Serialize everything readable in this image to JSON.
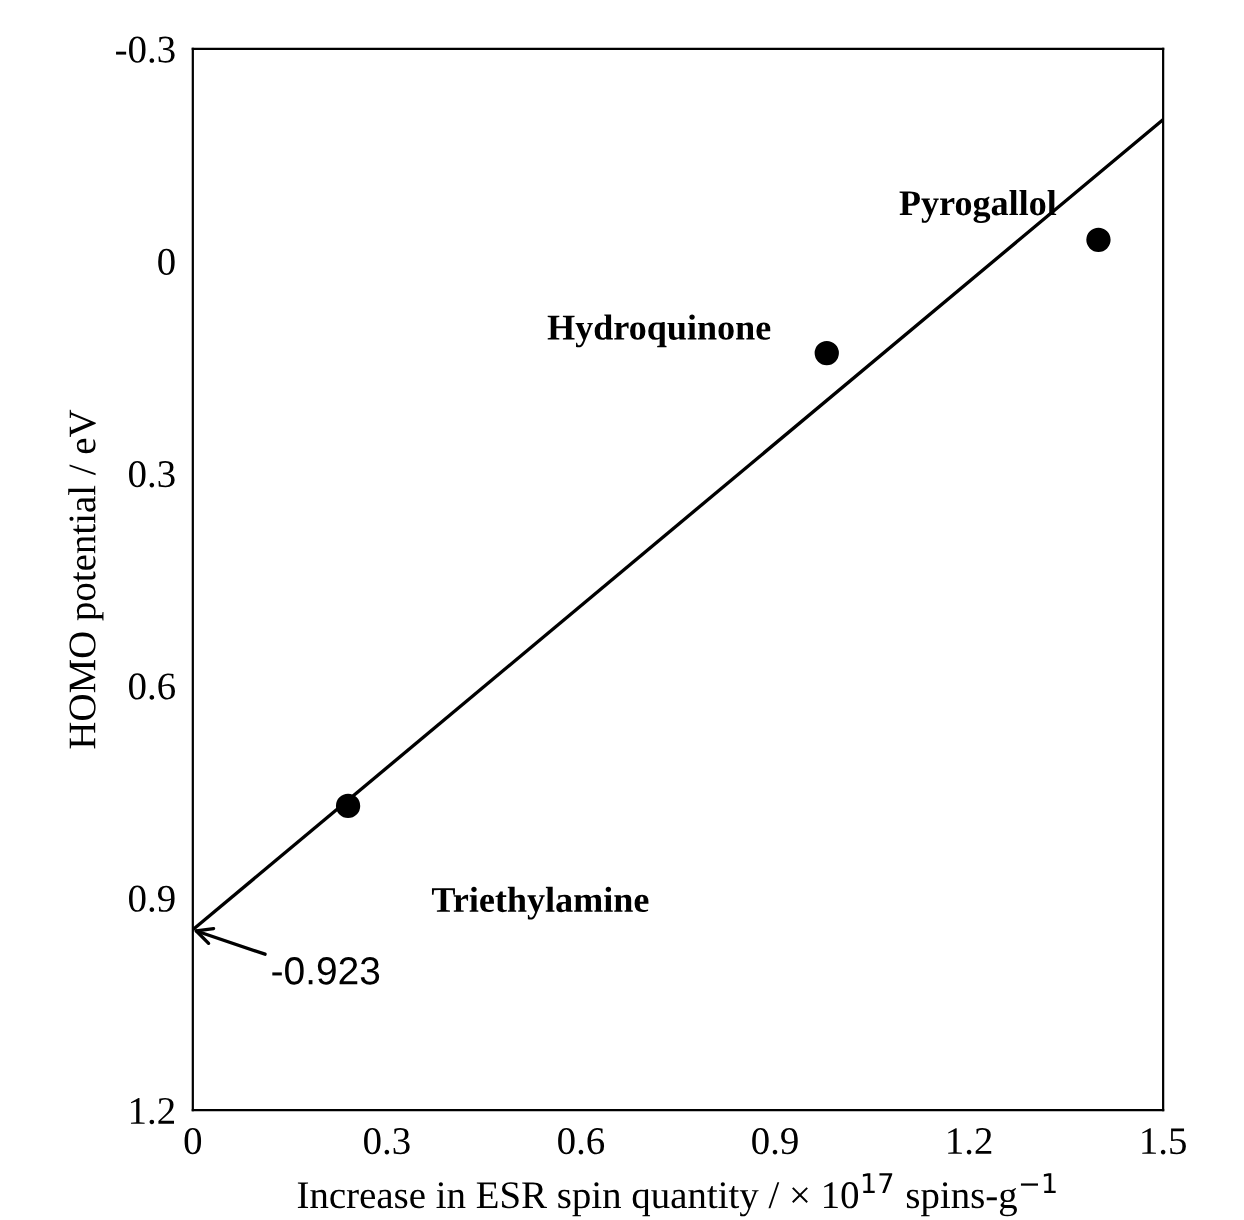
{
  "chart_data": {
    "type": "scatter",
    "xlabel": "Increase in ESR spin quantity / × 10$^{17}$ spins-g$^{−1}$",
    "ylabel": "HOMO potential / eV",
    "x": [
      0.24,
      0.98,
      1.4
    ],
    "series": [
      {
        "color": "#000000",
        "marker": "circle",
        "values": [
          0.77,
          0.13,
          -0.03
        ]
      },
      {
        "type": "line",
        "marker": "none",
        "color": "#000000",
        "x": [
          0,
          1.5
        ],
        "values": [
          0.945,
          -0.2
        ]
      }
    ],
    "annotations": [
      "Triethylamine",
      "Hydroquinone",
      "Pyrogallol",
      {
        "text": "-0.923",
        "x": 0,
        "y": 0.945
      }
    ],
    "xlim": [
      0,
      1.5
    ],
    "xticks": [
      0,
      0.3,
      0.6,
      0.9,
      1.2,
      1.5
    ],
    "ylim": [
      1.2,
      -0.3
    ],
    "yticks": [
      -0.3,
      0,
      0.3,
      0.6,
      0.9,
      1.2
    ],
    "grid": false,
    "legend": false
  }
}
